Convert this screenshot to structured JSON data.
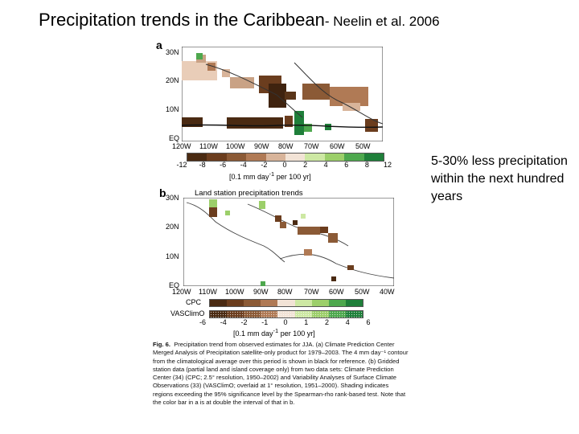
{
  "slide": {
    "title": "Precipitation trends in the Caribbean",
    "citation": "- Neelin et al. 2006",
    "side_note": "5-30% less precipitation within the next hundred years"
  },
  "panel_a": {
    "letter": "a",
    "lat_labels": [
      "30N",
      "20N",
      "10N",
      "EQ"
    ],
    "lon_labels": [
      "120W",
      "110W",
      "100W",
      "90W",
      "80W",
      "70W",
      "60W",
      "50W"
    ],
    "colorbar": {
      "ticks": [
        "-12",
        "-8",
        "-6",
        "-4",
        "-2",
        "0",
        "2",
        "4",
        "6",
        "8",
        "12"
      ],
      "unit": "[0.1 mm day",
      "unit_sup": "-1",
      "unit_tail": " per 100 yr]",
      "colors": [
        "#4a2a12",
        "#6b3d1e",
        "#8b5a36",
        "#b07a55",
        "#d8b49a",
        "#f2e3d6",
        "#cde8a3",
        "#9ccf6a",
        "#4ea84e",
        "#1f7f3a"
      ]
    }
  },
  "panel_b": {
    "letter": "b",
    "map_title": "Land station precipitation trends",
    "lat_labels": [
      "30N",
      "20N",
      "10N",
      "EQ"
    ],
    "lon_labels": [
      "120W",
      "110W",
      "100W",
      "90W",
      "80W",
      "70W",
      "60W",
      "50W",
      "40W"
    ],
    "colorbar": {
      "row1_label": "CPC",
      "row2_label": "VASClimO",
      "ticks": [
        "-6",
        "-4",
        "-2",
        "-1",
        "0",
        "1",
        "2",
        "4",
        "6"
      ],
      "unit": "[0.1 mm day",
      "unit_sup": "-1",
      "unit_tail": " per 100 yr]",
      "colors": [
        "#4a2a12",
        "#6b3d1e",
        "#8b5a36",
        "#b07a55",
        "#f2e3d6",
        "#cde8a3",
        "#9ccf6a",
        "#4ea84e",
        "#1f7f3a"
      ]
    }
  },
  "caption": {
    "label": "Fig. 6.",
    "text": "Precipitation trend from observed estimates for JJA. (a) Climate Prediction Center Merged Analysis of Precipitation satellite-only product for 1979–2003. The 4 mm day⁻¹ contour from the climatological average over this period is shown in black for reference. (b) Gridded station data (partial land and island coverage only) from two data sets: Climate Prediction Center (34) (CPC; 2.5° resolution, 1950–2002) and Variability Analyses of Surface Climate Observations (33) (VASClimO; overlaid at 1° resolution, 1951–2000). Shading indicates regions exceeding the 95% significance level by the Spearman-rho rank-based test. Note that the color bar in a is at double the interval of that in b."
  }
}
